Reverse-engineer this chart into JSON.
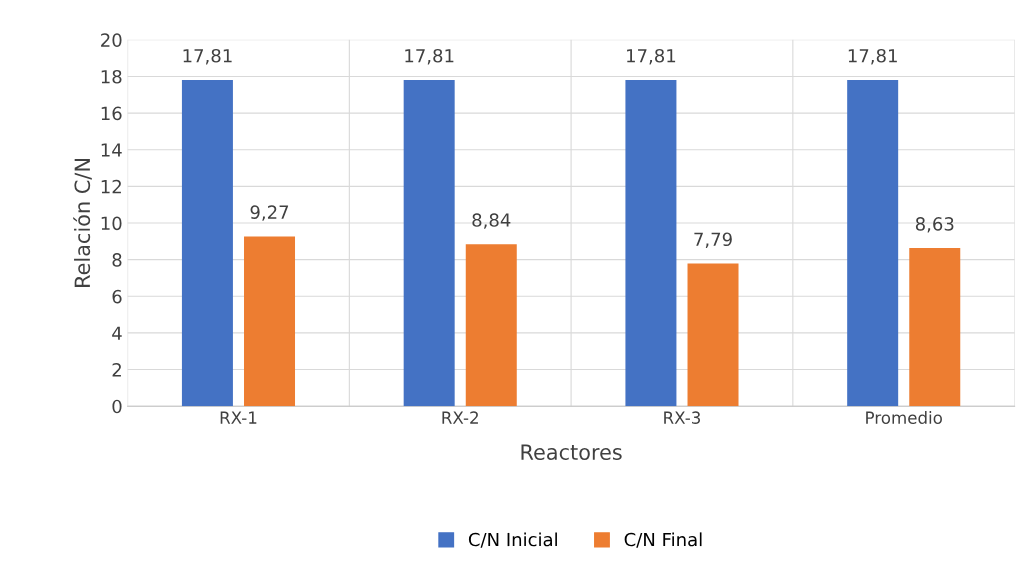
{
  "chart_data": {
    "type": "bar",
    "xlabel": "Reactores",
    "ylabel": "Relación C/N",
    "categories": [
      "RX-1",
      "RX-2",
      "RX-3",
      "Promedio"
    ],
    "series": [
      {
        "name": "C/N Inicial",
        "color": "#4472c4",
        "values": [
          17.81,
          17.81,
          17.81,
          17.81
        ],
        "value_labels": [
          "17,81",
          "17,81",
          "17,81",
          "17,81"
        ]
      },
      {
        "name": "C/N Final",
        "color": "#ed7d31",
        "values": [
          9.27,
          8.84,
          7.79,
          8.63
        ],
        "value_labels": [
          "9,27",
          "8,84",
          "7,79",
          "8,63"
        ]
      }
    ],
    "ylim": [
      0,
      20
    ],
    "yticks": [
      0,
      2,
      4,
      6,
      8,
      10,
      12,
      14,
      16,
      18,
      20
    ],
    "grid": "y",
    "legend": "bottom"
  }
}
